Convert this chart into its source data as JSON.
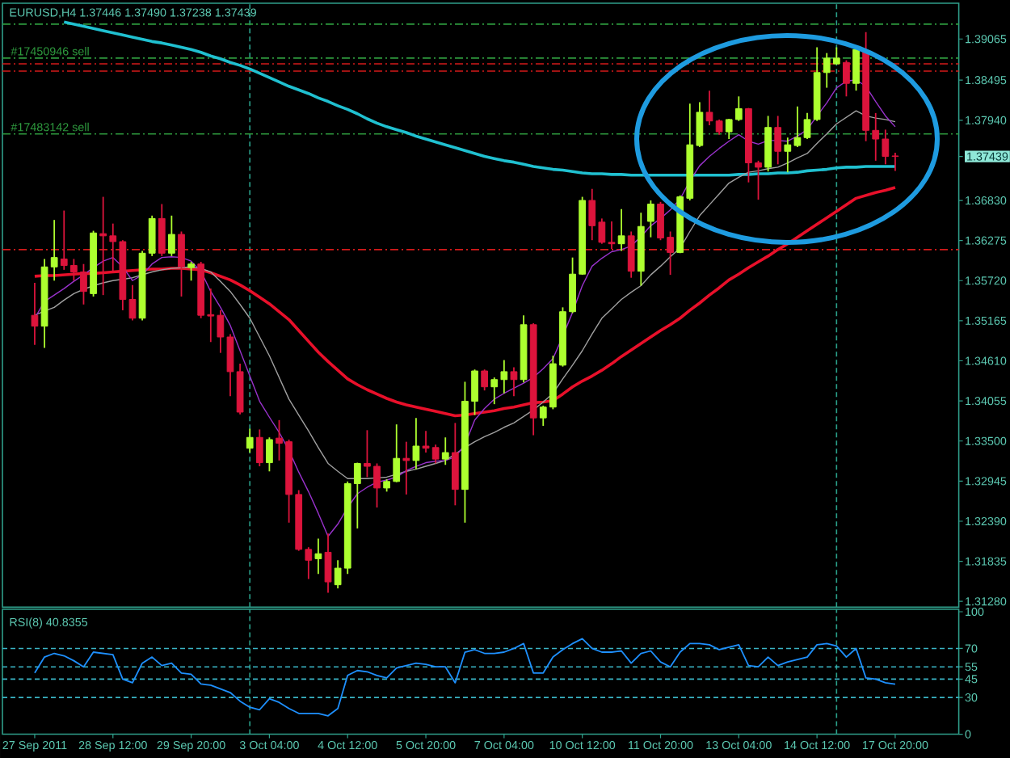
{
  "chart_data": [
    {
      "type": "candlestick",
      "title": "EURUSD,H4 1.37446 1.37490 1.37238 1.37439",
      "categories": [
        null,
        null,
        null,
        null,
        null,
        null,
        null,
        null,
        null,
        null,
        null,
        null,
        null,
        null,
        null,
        null,
        null,
        null,
        null,
        null,
        null,
        null,
        null,
        null,
        null,
        null,
        null,
        null,
        null,
        null,
        null,
        null,
        null,
        null,
        null,
        null,
        null,
        null,
        null,
        null,
        null,
        null,
        null,
        null,
        null,
        null,
        null,
        null,
        null,
        null,
        null,
        null,
        null,
        null,
        null,
        null,
        null,
        null,
        null,
        null,
        null,
        null,
        null,
        null,
        null,
        null,
        null,
        null,
        null,
        null,
        null,
        null,
        null,
        null,
        null,
        null,
        null,
        null,
        null,
        null,
        null,
        null,
        null,
        null,
        null,
        null,
        null,
        null,
        null
      ],
      "ohlc": [
        [
          1.3524,
          1.3569,
          1.3483,
          1.3509
        ],
        [
          1.3509,
          1.3602,
          1.3479,
          1.3591
        ],
        [
          1.3591,
          1.3656,
          1.3572,
          1.3604
        ],
        [
          1.3602,
          1.3669,
          1.3587,
          1.3593
        ],
        [
          1.3593,
          1.3602,
          1.3572,
          1.3584
        ],
        [
          1.3584,
          1.3595,
          1.3539,
          1.3557
        ],
        [
          1.3554,
          1.3641,
          1.355,
          1.3638
        ],
        [
          1.3637,
          1.3688,
          1.3552,
          1.3634
        ],
        [
          1.3634,
          1.3651,
          1.3584,
          1.3626
        ],
        [
          1.3626,
          1.3628,
          1.3531,
          1.3546
        ],
        [
          1.3546,
          1.3566,
          1.3517,
          1.352
        ],
        [
          1.352,
          1.3613,
          1.3517,
          1.361
        ],
        [
          1.361,
          1.3662,
          1.3606,
          1.3658
        ],
        [
          1.3658,
          1.3678,
          1.3606,
          1.361
        ],
        [
          1.361,
          1.3662,
          1.3606,
          1.3636
        ],
        [
          1.3636,
          1.364,
          1.355,
          1.3591
        ],
        [
          1.359,
          1.3598,
          1.3572,
          1.3595
        ],
        [
          1.3595,
          1.3598,
          1.352,
          1.3524
        ],
        [
          1.3525,
          1.3561,
          1.3487,
          1.3523
        ],
        [
          1.3524,
          1.3531,
          1.3472,
          1.3494
        ],
        [
          1.3494,
          1.3498,
          1.3412,
          1.3446
        ],
        [
          1.3446,
          1.3457,
          1.3387,
          1.339
        ],
        [
          1.334,
          1.3367,
          1.3334,
          1.3355
        ],
        [
          1.3355,
          1.3366,
          1.3315,
          1.332
        ],
        [
          1.332,
          1.3355,
          1.3308,
          1.3352
        ],
        [
          1.3354,
          1.3379,
          1.3323,
          1.3347
        ],
        [
          1.3349,
          1.3352,
          1.3237,
          1.3276
        ],
        [
          1.3276,
          1.3282,
          1.3198,
          1.32
        ],
        [
          1.32,
          1.3203,
          1.3159,
          1.3185
        ],
        [
          1.3187,
          1.3215,
          1.3166,
          1.3194
        ],
        [
          1.3196,
          1.3222,
          1.314,
          1.3155
        ],
        [
          1.3151,
          1.3185,
          1.3146,
          1.3174
        ],
        [
          1.3174,
          1.3294,
          1.3166,
          1.3291
        ],
        [
          1.3291,
          1.332,
          1.3229,
          1.3319
        ],
        [
          1.3319,
          1.3365,
          1.33,
          1.3315
        ],
        [
          1.3315,
          1.3319,
          1.3258,
          1.3285
        ],
        [
          1.3285,
          1.3297,
          1.328,
          1.3294
        ],
        [
          1.3294,
          1.3373,
          1.3293,
          1.3326
        ],
        [
          1.3326,
          1.3349,
          1.3276,
          1.3323
        ],
        [
          1.3323,
          1.3382,
          1.3311,
          1.3343
        ],
        [
          1.3343,
          1.3364,
          1.3334,
          1.334
        ],
        [
          1.3341,
          1.3345,
          1.3319,
          1.3325
        ],
        [
          1.3325,
          1.3355,
          1.3317,
          1.3334
        ],
        [
          1.3334,
          1.3375,
          1.3261,
          1.3283
        ],
        [
          1.3283,
          1.3432,
          1.3237,
          1.3405
        ],
        [
          1.3405,
          1.3449,
          1.3386,
          1.3447
        ],
        [
          1.3447,
          1.3449,
          1.342,
          1.3425
        ],
        [
          1.3425,
          1.3438,
          1.3401,
          1.3435
        ],
        [
          1.3435,
          1.3462,
          1.3416,
          1.3446
        ],
        [
          1.3446,
          1.3452,
          1.3412,
          1.3435
        ],
        [
          1.3435,
          1.3524,
          1.3431,
          1.3511
        ],
        [
          1.3511,
          1.3513,
          1.3358,
          1.3382
        ],
        [
          1.3382,
          1.3399,
          1.3371,
          1.3397
        ],
        [
          1.3397,
          1.3468,
          1.3394,
          1.3457
        ],
        [
          1.3455,
          1.3535,
          1.3453,
          1.3529
        ],
        [
          1.3529,
          1.3604,
          1.3527,
          1.3581
        ],
        [
          1.3581,
          1.3688,
          1.358,
          1.3683
        ],
        [
          1.3683,
          1.3699,
          1.3628,
          1.3648
        ],
        [
          1.3653,
          1.3658,
          1.3623,
          1.3625
        ],
        [
          1.3625,
          1.3654,
          1.3616,
          1.3623
        ],
        [
          1.3623,
          1.3671,
          1.3613,
          1.3634
        ],
        [
          1.3634,
          1.364,
          1.3576,
          1.3585
        ],
        [
          1.3585,
          1.3666,
          1.3565,
          1.3647
        ],
        [
          1.3654,
          1.3683,
          1.3632,
          1.3678
        ],
        [
          1.3678,
          1.3681,
          1.3628,
          1.3631
        ],
        [
          1.3632,
          1.364,
          1.358,
          1.3611
        ],
        [
          1.3611,
          1.369,
          1.361,
          1.3688
        ],
        [
          1.3686,
          1.3817,
          1.3683,
          1.376
        ],
        [
          1.3759,
          1.3819,
          1.3757,
          1.3805
        ],
        [
          1.3805,
          1.3835,
          1.3787,
          1.3793
        ],
        [
          1.3793,
          1.3795,
          1.3774,
          1.3778
        ],
        [
          1.3778,
          1.3796,
          1.3768,
          1.3795
        ],
        [
          1.3795,
          1.3827,
          1.3793,
          1.381
        ],
        [
          1.381,
          1.3811,
          1.3708,
          1.3735
        ],
        [
          1.3735,
          1.3738,
          1.3684,
          1.3729
        ],
        [
          1.3729,
          1.38,
          1.3723,
          1.3784
        ],
        [
          1.3784,
          1.38,
          1.3733,
          1.3751
        ],
        [
          1.3751,
          1.377,
          1.3722,
          1.376
        ],
        [
          1.3759,
          1.3813,
          1.3757,
          1.377
        ],
        [
          1.377,
          1.3804,
          1.3768,
          1.3795
        ],
        [
          1.3795,
          1.3895,
          1.3793,
          1.386
        ],
        [
          1.386,
          1.3887,
          1.3839,
          1.388
        ],
        [
          1.3872,
          1.3895,
          1.3871,
          1.388
        ],
        [
          1.3874,
          1.3877,
          1.3827,
          1.3845
        ],
        [
          1.3845,
          1.3895,
          1.3835,
          1.3892
        ],
        [
          1.3889,
          1.3916,
          1.3765,
          1.378
        ],
        [
          1.378,
          1.3804,
          1.3738,
          1.3768
        ],
        [
          1.3768,
          1.3781,
          1.3733,
          1.3744
        ],
        [
          1.37446,
          1.3749,
          1.37238,
          1.37439
        ]
      ],
      "colors": [
        "#dc143c",
        "#adff2f",
        "#adff2f",
        "#dc143c",
        "#dc143c",
        "#dc143c",
        "#adff2f",
        "#dc143c",
        "#dc143c",
        "#dc143c",
        "#dc143c",
        "#adff2f",
        "#adff2f",
        "#dc143c",
        "#adff2f",
        "#dc143c",
        "#adff2f",
        "#dc143c",
        "#dc143c",
        "#dc143c",
        "#dc143c",
        "#dc143c",
        "#adff2f",
        "#dc143c",
        "#adff2f",
        "#dc143c",
        "#dc143c",
        "#dc143c",
        "#dc143c",
        "#adff2f",
        "#dc143c",
        "#adff2f",
        "#adff2f",
        "#adff2f",
        "#dc143c",
        "#dc143c",
        "#adff2f",
        "#adff2f",
        "#dc143c",
        "#adff2f",
        "#dc143c",
        "#dc143c",
        "#adff2f",
        "#dc143c",
        "#adff2f",
        "#adff2f",
        "#dc143c",
        "#adff2f",
        "#adff2f",
        "#dc143c",
        "#adff2f",
        "#dc143c",
        "#adff2f",
        "#adff2f",
        "#adff2f",
        "#adff2f",
        "#adff2f",
        "#dc143c",
        "#dc143c",
        "#dc143c",
        "#adff2f",
        "#dc143c",
        "#adff2f",
        "#adff2f",
        "#dc143c",
        "#dc143c",
        "#adff2f",
        "#adff2f",
        "#adff2f",
        "#dc143c",
        "#dc143c",
        "#adff2f",
        "#adff2f",
        "#dc143c",
        "#dc143c",
        "#adff2f",
        "#dc143c",
        "#adff2f",
        "#adff2f",
        "#adff2f",
        "#adff2f",
        "#adff2f",
        "#adff2f",
        "#dc143c",
        "#adff2f",
        "#dc143c",
        "#dc143c",
        "#dc143c",
        "#dc143c"
      ],
      "series": [
        {
          "type": "line",
          "color": "#20c0d0",
          "values": [
            null,
            null,
            null,
            1.393,
            1.3927,
            1.3924,
            1.3921,
            1.3918,
            1.3915,
            1.3912,
            1.3909,
            1.3906,
            1.3903,
            1.3901,
            1.3898,
            1.3895,
            1.3892,
            1.3888,
            1.3883,
            1.3879,
            1.3874,
            1.387,
            1.3865,
            1.3859,
            1.3853,
            1.3847,
            1.3841,
            1.3836,
            1.3831,
            1.3825,
            1.382,
            1.3814,
            1.3809,
            1.3803,
            1.3796,
            1.379,
            1.3785,
            1.3781,
            1.3777,
            1.3772,
            1.3768,
            1.3764,
            1.376,
            1.3756,
            1.3752,
            1.3748,
            1.3744,
            1.3741,
            1.3738,
            1.3736,
            1.3733,
            1.373,
            1.3728,
            1.3726,
            1.3725,
            1.3723,
            1.3721,
            1.372,
            1.372,
            1.3719,
            1.3719,
            1.3718,
            1.3718,
            1.3718,
            1.3718,
            1.3718,
            1.3718,
            1.3718,
            1.3718,
            1.3718,
            1.3718,
            1.3718,
            1.3719,
            1.3719,
            1.372,
            1.372,
            1.3721,
            1.3721,
            1.3722,
            1.3724,
            1.3725,
            1.3726,
            1.3728,
            1.3729,
            1.3729,
            1.373,
            1.373,
            1.373,
            1.373
          ]
        },
        {
          "type": "line",
          "color": "#e8102a",
          "values": [
            1.3578,
            1.3579,
            1.3579,
            1.358,
            1.3581,
            1.3582,
            1.3582,
            1.3583,
            1.3584,
            1.3585,
            1.3586,
            1.3587,
            1.3588,
            1.3588,
            1.3589,
            1.3589,
            1.3588,
            1.3587,
            1.3583,
            1.3578,
            1.3573,
            1.3566,
            1.3558,
            1.3549,
            1.354,
            1.3529,
            1.3518,
            1.3503,
            1.3488,
            1.3473,
            1.346,
            1.3448,
            1.3436,
            1.3428,
            1.3421,
            1.3415,
            1.3409,
            1.3404,
            1.34,
            1.3397,
            1.3394,
            1.3391,
            1.3388,
            1.3385,
            1.3386,
            1.3388,
            1.339,
            1.3392,
            1.3395,
            1.3397,
            1.34,
            1.3403,
            1.3404,
            1.3406,
            1.3415,
            1.3425,
            1.3433,
            1.344,
            1.3448,
            1.3457,
            1.3467,
            1.3476,
            1.3485,
            1.3494,
            1.3503,
            1.3511,
            1.352,
            1.3531,
            1.3541,
            1.3552,
            1.3562,
            1.3573,
            1.3581,
            1.359,
            1.3598,
            1.3606,
            1.3615,
            1.3623,
            1.3632,
            1.3641,
            1.365,
            1.3659,
            1.3668,
            1.3677,
            1.3686,
            1.369,
            1.3694,
            1.3697,
            1.3701
          ]
        },
        {
          "type": "line",
          "color": "#a0a0a0",
          "values": [
            1.3524,
            1.353,
            1.3535,
            1.3545,
            1.3554,
            1.356,
            1.3565,
            1.3569,
            1.3572,
            1.3574,
            1.3576,
            1.358,
            1.3584,
            1.3587,
            1.3589,
            1.359,
            1.3591,
            1.3589,
            1.3584,
            1.3571,
            1.3557,
            1.3539,
            1.352,
            1.3494,
            1.3468,
            1.3438,
            1.3408,
            1.3386,
            1.3364,
            1.3341,
            1.3319,
            1.3308,
            1.3298,
            1.3298,
            1.3298,
            1.3299,
            1.33,
            1.3304,
            1.3308,
            1.3311,
            1.3315,
            1.3319,
            1.3323,
            1.3332,
            1.3341,
            1.3349,
            1.3356,
            1.3362,
            1.3369,
            1.3375,
            1.3384,
            1.3393,
            1.3404,
            1.3416,
            1.3436,
            1.3455,
            1.3475,
            1.3498,
            1.352,
            1.3533,
            1.3546,
            1.3556,
            1.3565,
            1.358,
            1.3592,
            1.3605,
            1.3617,
            1.364,
            1.3662,
            1.3677,
            1.3692,
            1.3707,
            1.3715,
            1.3722,
            1.3724,
            1.3727,
            1.3729,
            1.3735,
            1.3742,
            1.3748,
            1.3762,
            1.3775,
            1.3789,
            1.3798,
            1.3807,
            1.38,
            1.3797,
            1.3795,
            1.3792
          ]
        },
        {
          "type": "line",
          "color": "#9932cc",
          "values": [
            1.352,
            1.3543,
            1.3552,
            1.3561,
            1.3571,
            1.358,
            1.359,
            1.3599,
            1.3604,
            1.3591,
            1.3572,
            1.358,
            1.3595,
            1.3604,
            1.3605,
            1.3604,
            1.3599,
            1.3585,
            1.3557,
            1.3535,
            1.351,
            1.3475,
            1.344,
            1.3405,
            1.3383,
            1.3362,
            1.3337,
            1.3307,
            1.328,
            1.325,
            1.3218,
            1.3235,
            1.3258,
            1.3277,
            1.3286,
            1.3293,
            1.3296,
            1.33,
            1.3309,
            1.3315,
            1.332,
            1.3322,
            1.3323,
            1.3328,
            1.3345,
            1.3379,
            1.3395,
            1.3408,
            1.3416,
            1.3423,
            1.343,
            1.3438,
            1.345,
            1.3464,
            1.3495,
            1.3528,
            1.3565,
            1.3592,
            1.3603,
            1.3612,
            1.3615,
            1.362,
            1.3633,
            1.3648,
            1.3658,
            1.367,
            1.3685,
            1.371,
            1.3731,
            1.3744,
            1.3755,
            1.3765,
            1.3774,
            1.3765,
            1.3761,
            1.3766,
            1.3766,
            1.3765,
            1.3772,
            1.3781,
            1.38,
            1.3818,
            1.3839,
            1.3848,
            1.385,
            1.3841,
            1.382,
            1.38,
            1.3785
          ]
        }
      ],
      "ylim": [
        1.312,
        1.3956
      ],
      "yticks": [
        {
          "value": 1.39065,
          "label": "1.39065"
        },
        {
          "value": 1.38495,
          "label": "1.38495"
        },
        {
          "value": 1.3794,
          "label": "1.37940"
        },
        {
          "value": 1.37439,
          "label": "1.37439"
        },
        {
          "value": 1.3683,
          "label": "1.36830"
        },
        {
          "value": 1.36275,
          "label": "1.36275"
        },
        {
          "value": 1.3572,
          "label": "1.35720"
        },
        {
          "value": 1.35165,
          "label": "1.35165"
        },
        {
          "value": 1.3461,
          "label": "1.34610"
        },
        {
          "value": 1.34055,
          "label": "1.34055"
        },
        {
          "value": 1.335,
          "label": "1.33500"
        },
        {
          "value": 1.32945,
          "label": "1.32945"
        },
        {
          "value": 1.3239,
          "label": "1.32390"
        },
        {
          "value": 1.31835,
          "label": "1.31835"
        },
        {
          "value": 1.3128,
          "label": "1.31280"
        }
      ],
      "tick_labels": "y",
      "ref_lines": [
        {
          "axis": "y",
          "value": 1.3927,
          "color": "#2e9a3e",
          "line_style": "dashdot"
        },
        {
          "axis": "y",
          "value": 1.388,
          "label": "#17450946 sell",
          "color": "#2e9a3e",
          "line_style": "dashdot"
        },
        {
          "axis": "y",
          "value": 1.3872,
          "color": "#d41a1a",
          "line_style": "dashdot"
        },
        {
          "axis": "y",
          "value": 1.3862,
          "color": "#d41a1a",
          "line_style": "dashdot"
        },
        {
          "axis": "y",
          "value": 1.3775,
          "label": "#17483142 sell",
          "color": "#2e9a3e",
          "line_style": "dashdot"
        },
        {
          "axis": "y",
          "value": 1.3615,
          "color": "#d41a1a",
          "line_style": "dashdot"
        }
      ]
    },
    {
      "type": "line",
      "title": "RSI(8) 40.8355",
      "categories": [
        "27 Sep 2011",
        null,
        null,
        null,
        null,
        null,
        null,
        null,
        "28 Sep 12:00",
        null,
        null,
        null,
        null,
        null,
        null,
        null,
        "29 Sep 20:00",
        null,
        null,
        null,
        null,
        null,
        null,
        null,
        "3 Oct 04:00",
        null,
        null,
        null,
        null,
        null,
        null,
        null,
        "4 Oct 12:00",
        null,
        null,
        null,
        null,
        null,
        null,
        null,
        "5 Oct 20:00",
        null,
        null,
        null,
        null,
        null,
        null,
        null,
        "7 Oct 04:00",
        null,
        null,
        null,
        null,
        null,
        null,
        null,
        "10 Oct 12:00",
        null,
        null,
        null,
        null,
        null,
        null,
        null,
        "11 Oct 20:00",
        null,
        null,
        null,
        null,
        null,
        null,
        null,
        "13 Oct 04:00",
        null,
        null,
        null,
        null,
        null,
        null,
        null,
        "14 Oct 12:00",
        null,
        null,
        null,
        null,
        null,
        null,
        null,
        "17 Oct 20:00"
      ],
      "series": [
        {
          "color": "#1e90ff",
          "values": [
            50,
            63,
            66,
            64,
            60,
            55,
            67,
            66,
            65,
            45,
            42,
            58,
            63,
            56,
            58,
            50,
            49,
            41,
            40,
            37,
            34,
            27,
            22,
            20,
            29,
            26,
            21,
            17,
            17,
            17,
            15,
            21,
            48,
            52,
            51,
            48,
            46,
            54,
            56,
            58,
            57,
            55,
            55,
            42,
            67,
            69,
            66,
            66,
            67,
            70,
            74,
            50,
            50,
            63,
            69,
            74,
            78,
            70,
            67,
            67,
            68,
            58,
            66,
            68,
            59,
            55,
            67,
            74,
            74,
            73,
            69,
            71,
            73,
            56,
            55,
            63,
            56,
            59,
            61,
            63,
            73,
            74,
            72,
            63,
            70,
            46,
            45,
            42,
            40.8355
          ]
        }
      ],
      "ylim": [
        0,
        102
      ],
      "yticks": [
        0,
        30,
        45,
        55,
        70,
        100
      ],
      "ref_lines": [
        {
          "axis": "y",
          "value": 70,
          "color": "#3ab5c5",
          "line_style": "dashed"
        },
        {
          "axis": "y",
          "value": 55,
          "color": "#3ab5c5",
          "line_style": "dashed"
        },
        {
          "axis": "y",
          "value": 45,
          "color": "#3ab5c5",
          "line_style": "dashed"
        },
        {
          "axis": "y",
          "value": 30,
          "color": "#3ab5c5",
          "line_style": "dashed"
        }
      ]
    }
  ]
}
